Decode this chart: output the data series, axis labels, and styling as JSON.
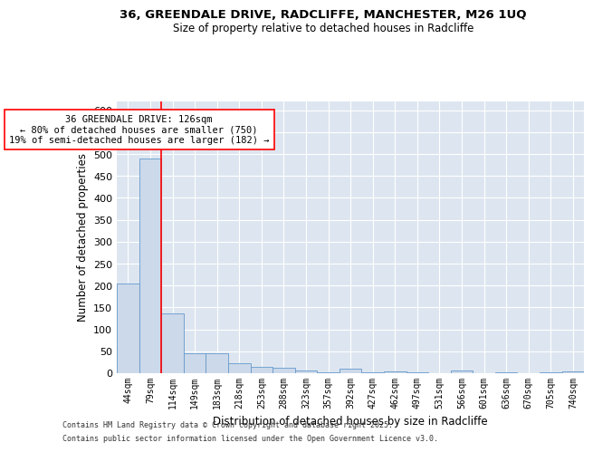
{
  "title1": "36, GREENDALE DRIVE, RADCLIFFE, MANCHESTER, M26 1UQ",
  "title2": "Size of property relative to detached houses in Radcliffe",
  "xlabel": "Distribution of detached houses by size in Radcliffe",
  "ylabel": "Number of detached properties",
  "categories": [
    "44sqm",
    "79sqm",
    "114sqm",
    "149sqm",
    "183sqm",
    "218sqm",
    "253sqm",
    "288sqm",
    "323sqm",
    "357sqm",
    "392sqm",
    "427sqm",
    "462sqm",
    "497sqm",
    "531sqm",
    "566sqm",
    "601sqm",
    "636sqm",
    "670sqm",
    "705sqm",
    "740sqm"
  ],
  "values": [
    205,
    490,
    137,
    46,
    45,
    23,
    14,
    12,
    6,
    3,
    10,
    2,
    5,
    2,
    1,
    7,
    1,
    3,
    1,
    2,
    5
  ],
  "bar_color": "#ccd9ea",
  "bar_edge_color": "#6699cc",
  "red_line_x": 1.5,
  "annotation_title": "36 GREENDALE DRIVE: 126sqm",
  "annotation_line2": "← 80% of detached houses are smaller (750)",
  "annotation_line3": "19% of semi-detached houses are larger (182) →",
  "ylim": [
    0,
    620
  ],
  "yticks": [
    0,
    50,
    100,
    150,
    200,
    250,
    300,
    350,
    400,
    450,
    500,
    550,
    600
  ],
  "bg_color": "#dde6f0",
  "grid_color": "#ffffff",
  "footer1": "Contains HM Land Registry data © Crown copyright and database right 2025.",
  "footer2": "Contains public sector information licensed under the Open Government Licence v3.0."
}
